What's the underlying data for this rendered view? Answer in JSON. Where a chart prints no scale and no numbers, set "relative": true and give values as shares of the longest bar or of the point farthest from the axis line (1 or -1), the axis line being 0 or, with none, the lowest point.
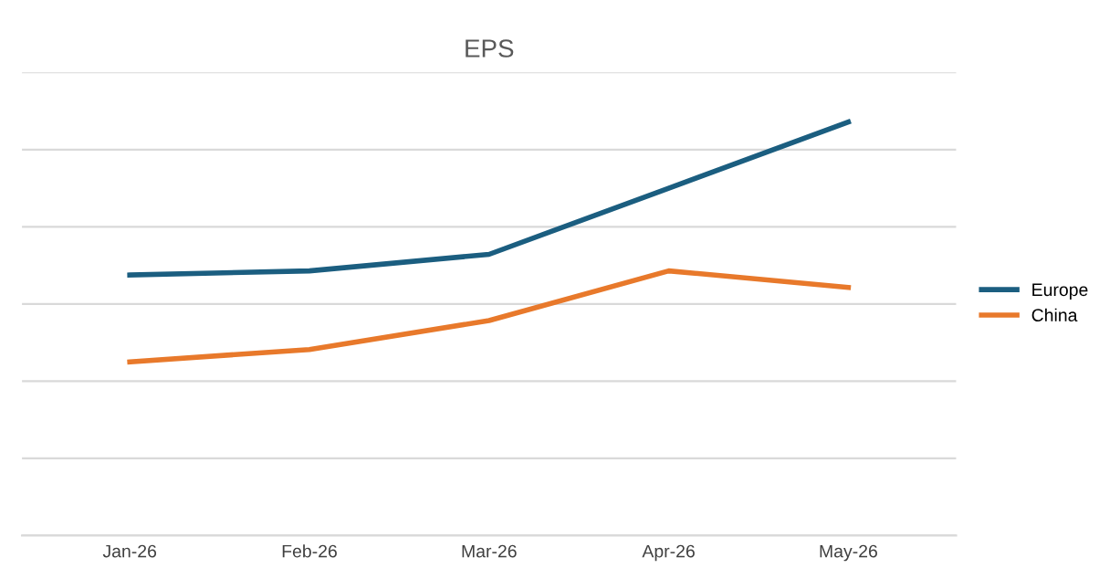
{
  "chart_data": {
    "type": "line",
    "title": "EPS",
    "relative": true,
    "grid": "y",
    "legend": "right",
    "marker": "none",
    "line_style": "solid",
    "categories": [
      "Jan-26",
      "Feb-26",
      "Mar-26",
      "Apr-26",
      "May-26"
    ],
    "series": [
      {
        "name": "Europe",
        "color": "#1b5e80",
        "values": [
          0.63,
          0.64,
          0.68,
          0.84,
          1
        ]
      },
      {
        "name": "China",
        "color": "#e8792b",
        "values": [
          0.42,
          0.45,
          0.52,
          0.64,
          0.6
        ]
      }
    ]
  }
}
